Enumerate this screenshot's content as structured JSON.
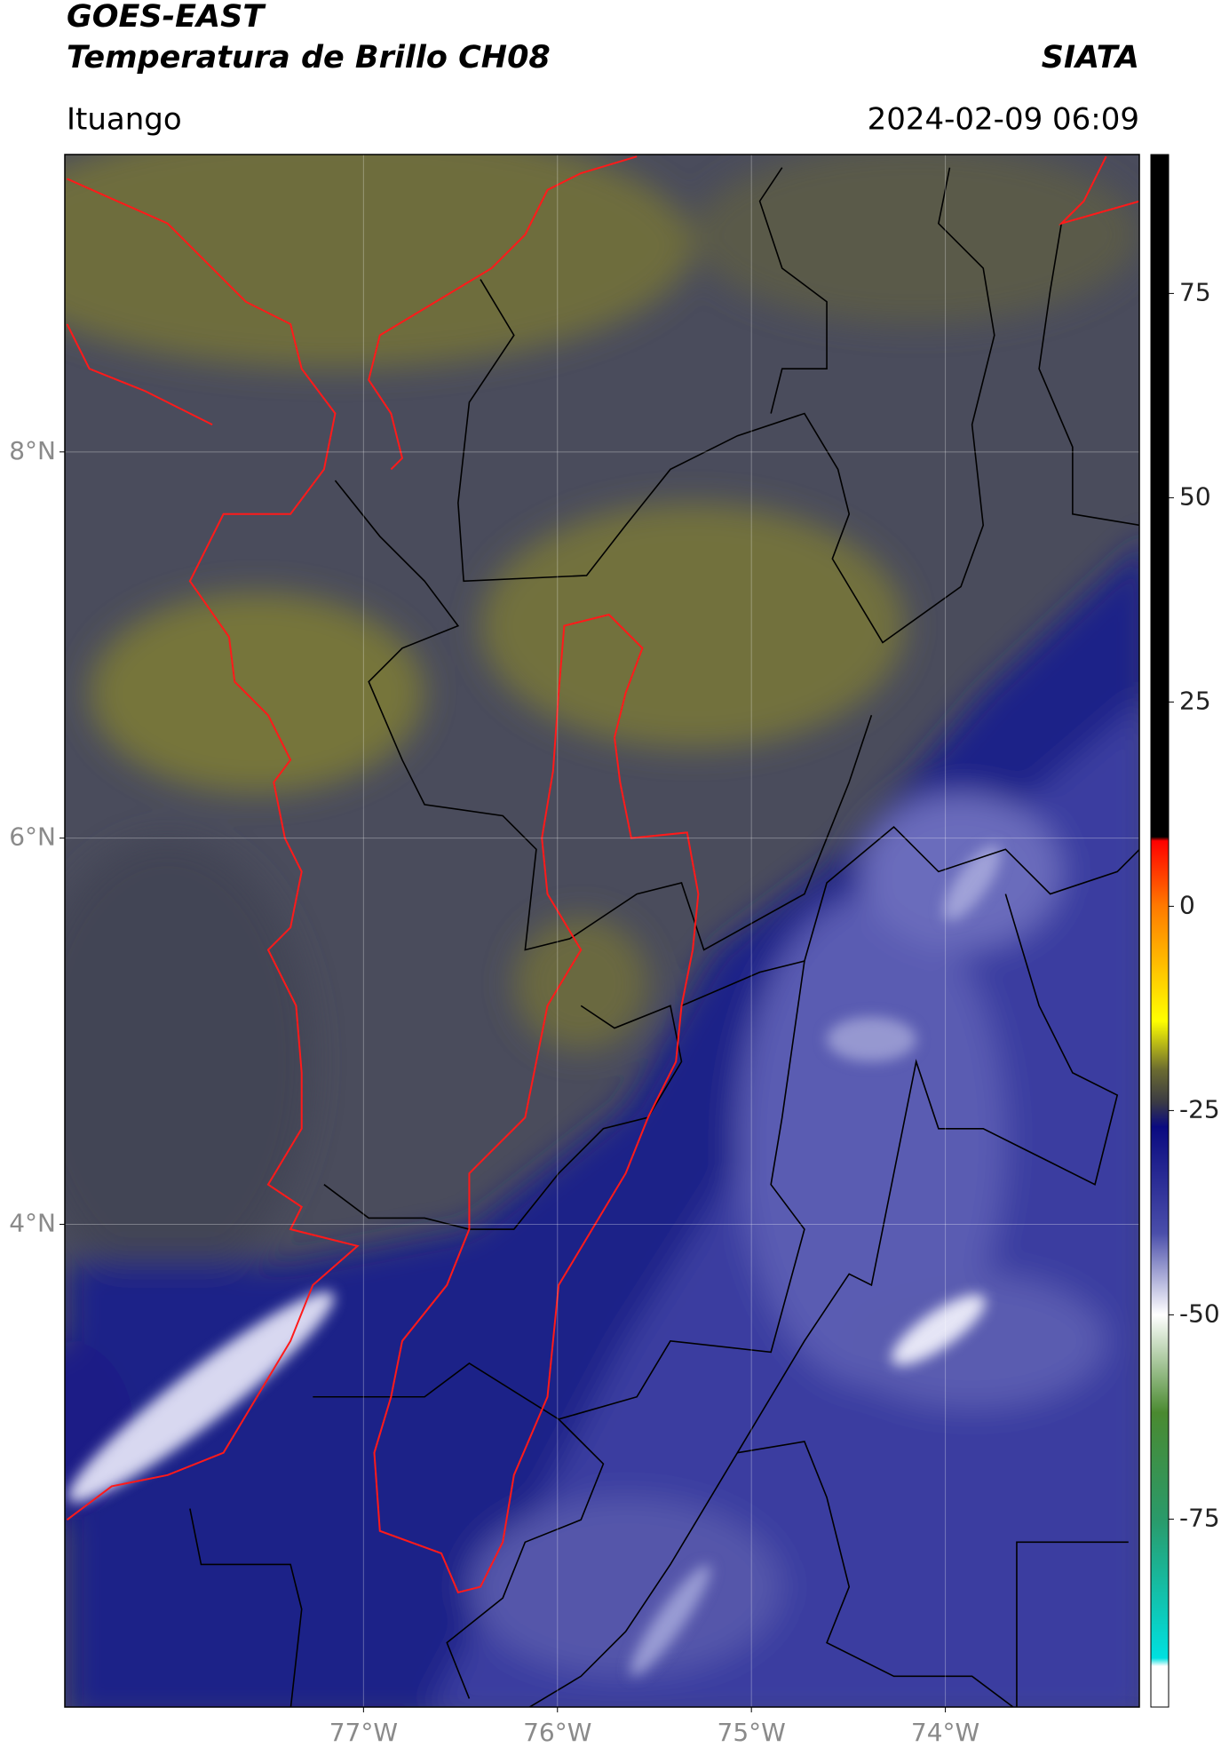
{
  "header": {
    "title": "GOES-EAST",
    "subtitle": "Temperatura de Brillo CH08",
    "brand": "SIATA",
    "location": "Ituango",
    "datetime": "2024-02-09 06:09"
  },
  "map": {
    "xlim": [
      -78.54,
      -73.0
    ],
    "ylim": [
      1.5,
      9.54
    ],
    "grid": true,
    "lat_ticks": [
      {
        "value": 8,
        "label": "8°N"
      },
      {
        "value": 6,
        "label": "6°N"
      },
      {
        "value": 4,
        "label": "4°N"
      }
    ],
    "lon_ticks": [
      {
        "value": -77,
        "label": "77°W"
      },
      {
        "value": -76,
        "label": "76°W"
      },
      {
        "value": -75,
        "label": "75°W"
      },
      {
        "value": -74,
        "label": "74°W"
      }
    ]
  },
  "colorbar": {
    "lim": [
      -98,
      92
    ],
    "ticks": [
      75,
      50,
      25,
      0,
      -25,
      -50,
      -75
    ],
    "stops": [
      {
        "value": 92,
        "color": "#000000"
      },
      {
        "value": 8.5,
        "color": "#000000"
      },
      {
        "value": 8,
        "color": "#ff0000"
      },
      {
        "value": 0,
        "color": "#ff7a00"
      },
      {
        "value": -14,
        "color": "#ffff00"
      },
      {
        "value": -20,
        "color": "#6b6b30"
      },
      {
        "value": -24,
        "color": "#3a3a44"
      },
      {
        "value": -27,
        "color": "#0a0a80"
      },
      {
        "value": -40,
        "color": "#4a4eaa"
      },
      {
        "value": -50,
        "color": "#ffffff"
      },
      {
        "value": -62,
        "color": "#4a8a30"
      },
      {
        "value": -75,
        "color": "#2a9a6a"
      },
      {
        "value": -92,
        "color": "#00e0e0"
      },
      {
        "value": -93,
        "color": "#ffffff"
      },
      {
        "value": -98,
        "color": "#ffffff"
      }
    ]
  }
}
